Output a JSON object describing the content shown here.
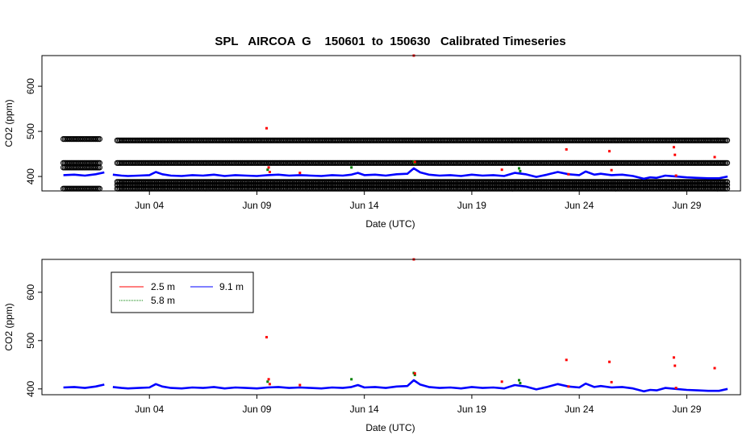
{
  "title": "SPL   AIRCOA  G    150601  to  150630   Calibrated Timeseries",
  "chart_data": [
    {
      "type": "scatter",
      "panel": "top",
      "xlabel": "Date (UTC)",
      "ylabel": "CO2 (ppm)",
      "xlim": [
        -1.0,
        31.5
      ],
      "ylim": [
        368,
        668
      ],
      "x_ticks": [
        {
          "label": "Jun 04",
          "x": 4
        },
        {
          "label": "Jun 09",
          "x": 9
        },
        {
          "label": "Jun 14",
          "x": 14
        },
        {
          "label": "Jun 19",
          "x": 19
        },
        {
          "label": "Jun 24",
          "x": 24
        },
        {
          "label": "Jun 29",
          "x": 29
        }
      ],
      "y_ticks": [
        400,
        500,
        600
      ],
      "calibration_levels": [
        {
          "value": 373,
          "x_range": [
            0.0,
            1.7
          ]
        },
        {
          "value": 373,
          "x_range": [
            2.5,
            30.9
          ]
        },
        {
          "value": 381,
          "x_range": [
            2.5,
            30.9
          ]
        },
        {
          "value": 388,
          "x_range": [
            2.5,
            30.9
          ]
        },
        {
          "value": 420,
          "x_range": [
            0.0,
            1.7
          ]
        },
        {
          "value": 430,
          "x_range": [
            0.0,
            1.7
          ]
        },
        {
          "value": 430,
          "x_range": [
            2.5,
            30.9
          ]
        },
        {
          "value": 483,
          "x_range": [
            0.0,
            1.7
          ]
        },
        {
          "value": 480,
          "x_range": [
            2.5,
            30.9
          ]
        }
      ],
      "series": [
        {
          "name": "9.1 m",
          "color": "#0000ff",
          "style": "line",
          "x": [
            0.0,
            0.5,
            1.0,
            1.5,
            1.9,
            2.3,
            2.7,
            3.0,
            3.5,
            4.0,
            4.3,
            4.6,
            5.0,
            5.5,
            6.0,
            6.5,
            7.0,
            7.5,
            8.0,
            8.5,
            9.0,
            9.5,
            10.0,
            10.5,
            11.0,
            11.5,
            12.0,
            12.5,
            13.0,
            13.4,
            13.7,
            14.0,
            14.5,
            15.0,
            15.5,
            16.0,
            16.3,
            16.6,
            17.0,
            17.5,
            18.0,
            18.5,
            19.0,
            19.5,
            20.0,
            20.5,
            21.0,
            21.5,
            22.0,
            22.5,
            23.0,
            23.5,
            24.0,
            24.3,
            24.7,
            25.0,
            25.5,
            26.0,
            26.5,
            27.0,
            27.3,
            27.6,
            28.0,
            28.5,
            29.0,
            29.5,
            30.0,
            30.5,
            30.9
          ],
          "y": [
            403,
            404,
            402,
            405,
            409,
            404,
            402,
            401,
            402,
            403,
            410,
            405,
            402,
            401,
            403,
            402,
            404,
            401,
            403,
            402,
            401,
            403,
            404,
            402,
            403,
            402,
            401,
            403,
            402,
            404,
            408,
            403,
            404,
            402,
            405,
            406,
            418,
            409,
            404,
            402,
            403,
            401,
            404,
            402,
            403,
            401,
            408,
            405,
            399,
            404,
            410,
            405,
            403,
            411,
            404,
            406,
            403,
            404,
            401,
            395,
            398,
            397,
            402,
            400,
            398,
            397,
            396,
            396,
            400
          ]
        },
        {
          "name": "5.8 m",
          "color": "#008000",
          "style": "points",
          "x": [
            9.5,
            13.4,
            16.3,
            16.35,
            21.2,
            21.25
          ],
          "y": [
            415,
            420,
            433,
            429,
            418,
            412
          ]
        },
        {
          "name": "2.5 m",
          "color": "#ff0000",
          "style": "points",
          "x": [
            9.45,
            9.55,
            9.6,
            11.0,
            16.3,
            16.35,
            20.4,
            23.4,
            23.5,
            25.4,
            25.5,
            28.4,
            28.45,
            28.5,
            30.3
          ],
          "y": [
            507,
            420,
            410,
            408,
            668,
            432,
            415,
            460,
            405,
            456,
            414,
            465,
            448,
            402,
            443
          ]
        }
      ]
    },
    {
      "type": "scatter",
      "panel": "bottom",
      "xlabel": "Date (UTC)",
      "ylabel": "CO2 (ppm)",
      "xlim": [
        -1.0,
        31.5
      ],
      "ylim": [
        388,
        668
      ],
      "x_ticks": [
        {
          "label": "Jun 04",
          "x": 4
        },
        {
          "label": "Jun 09",
          "x": 9
        },
        {
          "label": "Jun 14",
          "x": 14
        },
        {
          "label": "Jun 19",
          "x": 19
        },
        {
          "label": "Jun 24",
          "x": 24
        },
        {
          "label": "Jun 29",
          "x": 29
        }
      ],
      "y_ticks": [
        400,
        500,
        600
      ],
      "legend": {
        "position": "top-left",
        "entries": [
          "2.5 m",
          "9.1 m",
          "5.8 m"
        ]
      }
    }
  ]
}
